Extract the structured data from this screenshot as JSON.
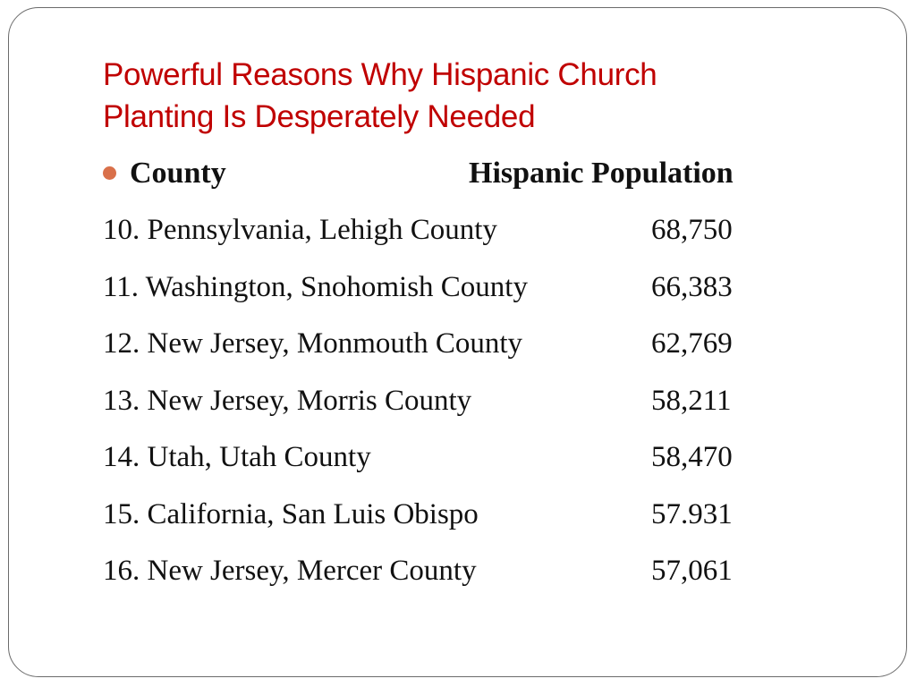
{
  "slide": {
    "title_line1": "Powerful Reasons Why Hispanic Church",
    "title_line2": "Planting Is Desperately Needed",
    "header": {
      "county": "County",
      "population": "Hispanic Population"
    },
    "rows": [
      {
        "county": "10. Pennsylvania, Lehigh County",
        "population": "68,750"
      },
      {
        "county": "11. Washington, Snohomish County",
        "population": "66,383"
      },
      {
        "county": "12. New Jersey, Monmouth County",
        "population": "62,769"
      },
      {
        "county": "13. New Jersey, Morris County",
        "population": "58,211"
      },
      {
        "county": "14. Utah, Utah County",
        "population": "58,470"
      },
      {
        "county": "15. California, San Luis Obispo",
        "population": "57.931"
      },
      {
        "county": "16. New Jersey, Mercer County",
        "population": "57,061"
      }
    ],
    "colors": {
      "title": "#c00000",
      "bullet": "#d9704a",
      "frame": "#6b6b6b"
    }
  }
}
